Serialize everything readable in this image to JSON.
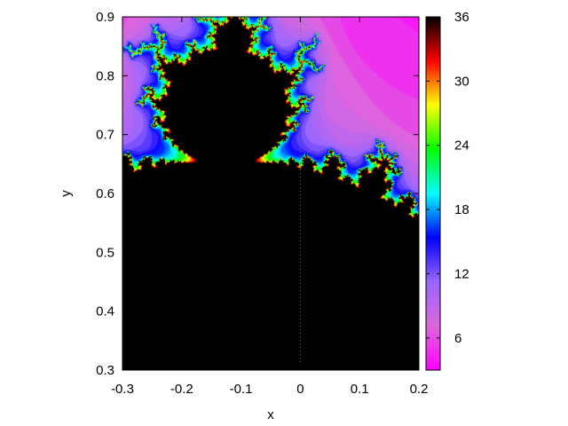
{
  "chart_data": {
    "type": "heatmap",
    "title": "",
    "xlabel": "x",
    "ylabel": "y",
    "xlim": [
      -0.3,
      0.2
    ],
    "ylim": [
      0.3,
      0.9
    ],
    "x_ticks": [
      "-0.3",
      "-0.2",
      "-0.1",
      "0",
      "0.1",
      "0.2"
    ],
    "y_ticks": [
      "0.3",
      "0.4",
      "0.5",
      "0.6",
      "0.7",
      "0.8",
      "0.9"
    ],
    "x_tick_values": [
      -0.3,
      -0.2,
      -0.1,
      0,
      0.1,
      0.2
    ],
    "y_tick_values": [
      0.3,
      0.4,
      0.5,
      0.6,
      0.7,
      0.8,
      0.9
    ],
    "colorbar": {
      "range": [
        3,
        36
      ],
      "ticks": [
        "6",
        "12",
        "18",
        "24",
        "30",
        "36"
      ],
      "tick_values": [
        6,
        12,
        18,
        24,
        30,
        36
      ],
      "palette": [
        "#ff00ff",
        "#dd66dd",
        "#9966ff",
        "#0000ff",
        "#00ffff",
        "#00ff00",
        "#ffff00",
        "#ff0000",
        "#000000"
      ]
    },
    "grid": false,
    "guide_line_x": 0,
    "data_description": "Escape-time iteration count of z -> z^2 + c over the complex plane window"
  }
}
